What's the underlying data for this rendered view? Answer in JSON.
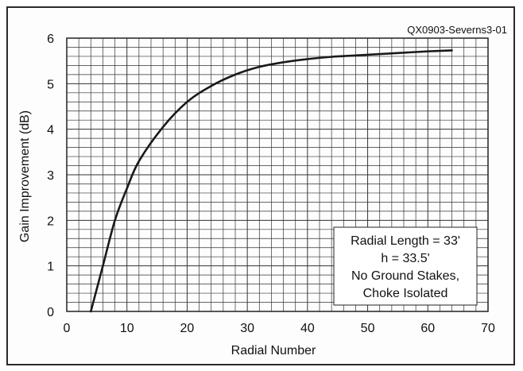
{
  "figure_id": "QX0903-Severns3-01",
  "chart_data": {
    "type": "line",
    "xlabel": "Radial Number",
    "ylabel": "Gain Improvement (dB)",
    "xlim": [
      0,
      70
    ],
    "ylim": [
      0,
      6
    ],
    "x_ticks": [
      "0",
      "10",
      "20",
      "30",
      "40",
      "50",
      "60",
      "70"
    ],
    "y_ticks": [
      "0",
      "1",
      "2",
      "3",
      "4",
      "5",
      "6"
    ],
    "grid": true,
    "series": [
      {
        "x": [
          4,
          6,
          8,
          10,
          12,
          16,
          20,
          24,
          28,
          32,
          36,
          40,
          44,
          48,
          52,
          56,
          60,
          64
        ],
        "y": [
          0,
          1.0,
          2.0,
          2.7,
          3.3,
          4.05,
          4.6,
          4.95,
          5.2,
          5.37,
          5.47,
          5.54,
          5.59,
          5.62,
          5.65,
          5.68,
          5.71,
          5.73
        ]
      }
    ],
    "annotation": {
      "lines": [
        "Radial Length = 33'",
        "h = 33.5'",
        "No Ground Stakes,",
        "Choke Isolated"
      ],
      "placement": "bottom-right"
    }
  }
}
